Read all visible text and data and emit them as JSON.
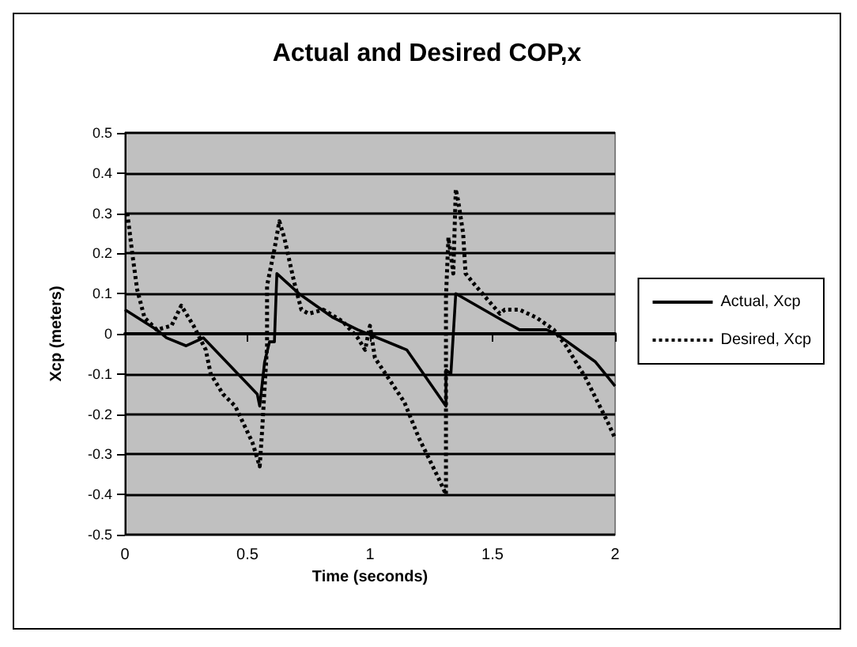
{
  "chart_data": {
    "type": "line",
    "title": "Actual and Desired COP,x",
    "xlabel": "Time (seconds)",
    "ylabel": "Xcp (meters)",
    "xlim": [
      0,
      2
    ],
    "xticks": [
      0,
      0.5,
      1,
      1.5,
      2
    ],
    "ylim": [
      -0.5,
      0.5
    ],
    "yticks": [
      -0.5,
      -0.4,
      -0.3,
      -0.2,
      -0.1,
      0,
      0.1,
      0.2,
      0.3,
      0.4,
      0.5
    ],
    "grid": "y",
    "legend": "right",
    "marker": "none",
    "series": [
      {
        "name": "Actual, Xcp",
        "color": "#000000",
        "line_style": "solid",
        "x": [
          0,
          0.13,
          0.17,
          0.25,
          0.32,
          0.54,
          0.55,
          0.57,
          0.59,
          0.61,
          0.62,
          0.71,
          0.85,
          0.95,
          1.15,
          1.31,
          1.31,
          1.33,
          1.35,
          1.55,
          1.61,
          1.72,
          1.76,
          1.92,
          2.0
        ],
        "values": [
          0.06,
          0.01,
          -0.01,
          -0.03,
          -0.01,
          -0.15,
          -0.18,
          -0.07,
          -0.02,
          -0.02,
          0.15,
          0.1,
          0.04,
          0.01,
          -0.04,
          -0.18,
          -0.09,
          -0.1,
          0.1,
          0.03,
          0.01,
          0.01,
          0,
          -0.07,
          -0.13
        ]
      },
      {
        "name": "Desired, Xcp",
        "color": "#000000",
        "line_style": "dotted",
        "x": [
          0.01,
          0.03,
          0.05,
          0.08,
          0.13,
          0.19,
          0.23,
          0.28,
          0.33,
          0.35,
          0.4,
          0.45,
          0.52,
          0.55,
          0.56,
          0.58,
          0.58,
          0.61,
          0.63,
          0.65,
          0.69,
          0.72,
          0.75,
          0.81,
          0.89,
          0.95,
          0.98,
          1.0,
          1.02,
          1.14,
          1.2,
          1.28,
          1.31,
          1.31,
          1.31,
          1.32,
          1.34,
          1.35,
          1.36,
          1.38,
          1.39,
          1.43,
          1.53,
          1.55,
          1.61,
          1.68,
          1.75,
          1.8,
          1.88,
          1.97,
          2.0
        ],
        "values": [
          0.3,
          0.2,
          0.11,
          0.04,
          0.01,
          0.02,
          0.07,
          0.02,
          -0.04,
          -0.1,
          -0.15,
          -0.18,
          -0.27,
          -0.33,
          -0.24,
          -0.03,
          0.12,
          0.21,
          0.28,
          0.24,
          0.13,
          0.06,
          0.05,
          0.06,
          0.03,
          -0.01,
          -0.04,
          0.02,
          -0.06,
          -0.17,
          -0.26,
          -0.36,
          -0.4,
          -0.18,
          0.09,
          0.24,
          0.15,
          0.36,
          0.33,
          0.25,
          0.15,
          0.12,
          0.05,
          0.06,
          0.06,
          0.04,
          0.01,
          -0.03,
          -0.11,
          -0.22,
          -0.26
        ]
      }
    ]
  }
}
